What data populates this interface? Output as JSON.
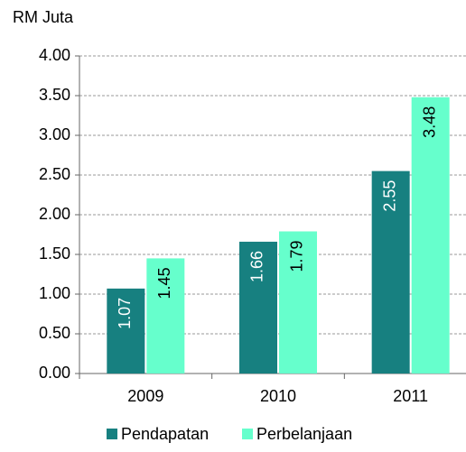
{
  "chart_data": {
    "type": "bar",
    "y_label": "RM Juta",
    "categories": [
      "2009",
      "2010",
      "2011"
    ],
    "series": [
      {
        "name": "Pendapatan",
        "color": "#178080",
        "values": [
          1.07,
          1.66,
          2.55
        ]
      },
      {
        "name": "Perbelanjaan",
        "color": "#66ffcc",
        "values": [
          1.45,
          1.79,
          3.48
        ]
      }
    ],
    "ylim": [
      0,
      4
    ],
    "yticks": [
      {
        "value": 0,
        "label": "0.00"
      },
      {
        "value": 0.5,
        "label": "0.50"
      },
      {
        "value": 1,
        "label": "1.00"
      },
      {
        "value": 1.5,
        "label": "1.50"
      },
      {
        "value": 2,
        "label": "2.00"
      },
      {
        "value": 2.5,
        "label": "2.50"
      },
      {
        "value": 3,
        "label": "3.00"
      },
      {
        "value": 3.5,
        "label": "3.50"
      },
      {
        "value": 4,
        "label": "4.00"
      }
    ],
    "grid": true,
    "legend": "bottom"
  }
}
